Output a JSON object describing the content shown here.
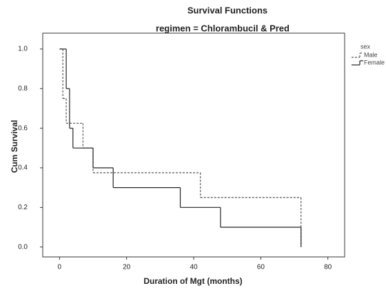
{
  "chart_data": {
    "type": "step",
    "title": "Survival Functions",
    "subtitle": "regimen = Chlorambucil & Pred",
    "x_label": "Duration of Mgt (months)",
    "y_label": "Cum Survival",
    "legend_title": "sex",
    "legend_position": "top-right",
    "xlim": [
      -5,
      85
    ],
    "ylim": [
      -0.05,
      1.08
    ],
    "xticks": [
      0,
      20,
      40,
      60,
      80
    ],
    "yticks": [
      {
        "value": 0,
        "label": "0.0"
      },
      {
        "value": 0.2,
        "label": "0.2"
      },
      {
        "value": 0.4,
        "label": "0.4"
      },
      {
        "value": 0.6,
        "label": "0.6"
      },
      {
        "value": 0.8,
        "label": "0.8"
      },
      {
        "value": 1,
        "label": "1.0"
      }
    ],
    "series": [
      {
        "name": "Male",
        "color": "#555555",
        "dash": true,
        "x": [
          0,
          1,
          2,
          7,
          10,
          42,
          72
        ],
        "values": [
          1,
          0.75,
          0.625,
          0.5,
          0.375,
          0.25,
          0
        ]
      },
      {
        "name": "Female",
        "color": "#222222",
        "dash": false,
        "x": [
          0,
          2,
          3,
          4,
          10,
          16,
          36,
          48,
          72
        ],
        "values": [
          1,
          0.8,
          0.6,
          0.5,
          0.4,
          0.3,
          0.2,
          0.1,
          0
        ]
      }
    ]
  }
}
